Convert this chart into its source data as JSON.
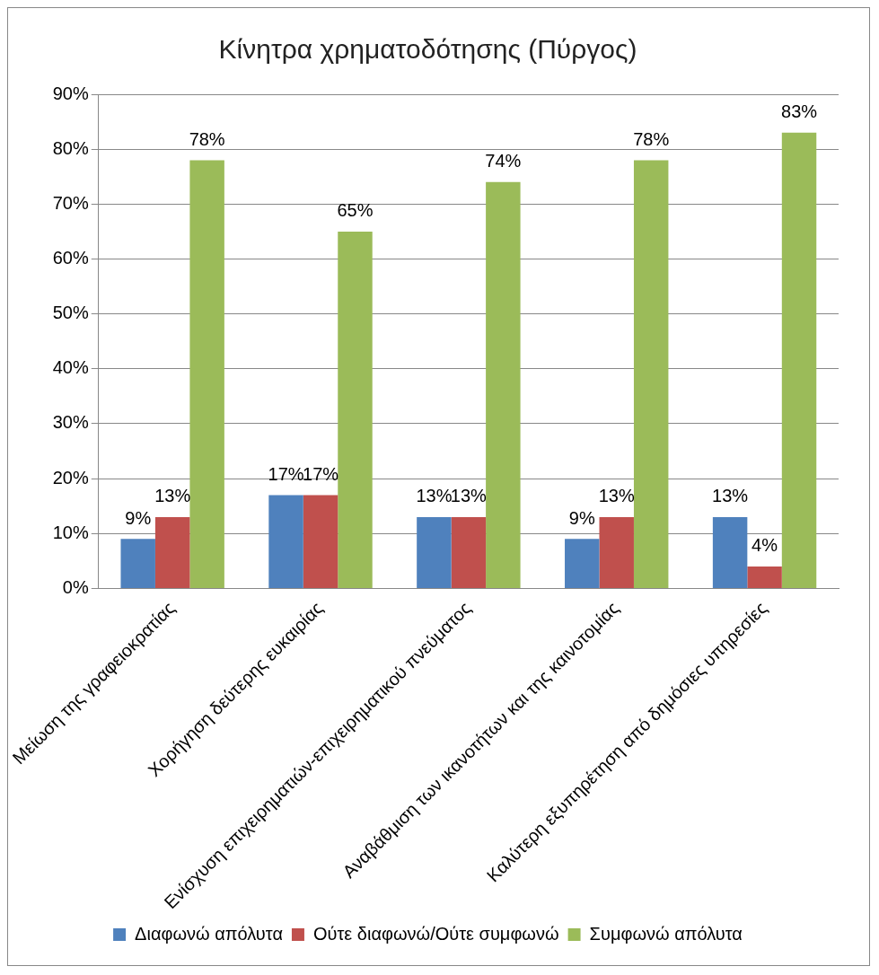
{
  "chart_data": {
    "type": "bar",
    "title": "Κίνητρα χρηματοδότησης (Πύργος)",
    "categories": [
      "Μείωση της γραφειοκρατίας",
      "Χορήγηση δεύτερης ευκαιρίας",
      "Ενίσχυση επιχειρηματιών-επιχειρηματικού πνεύματος",
      "Αναβάθμιση των ικανοτήτων και της καινοτομίας",
      "Καλύτερη εξυπηρέτηση από δημόσιες υπηρεσίες"
    ],
    "series": [
      {
        "name": "Διαφωνώ απόλυτα",
        "color": "#4f81bd",
        "values": [
          9,
          17,
          13,
          9,
          13
        ],
        "value_labels": [
          "9%",
          "17%",
          "13%",
          "9%",
          "13%"
        ]
      },
      {
        "name": "Ούτε διαφωνώ/Ούτε συμφωνώ",
        "color": "#c0504d",
        "values": [
          13,
          17,
          13,
          13,
          4
        ],
        "value_labels": [
          "13%",
          "17%",
          "13%",
          "13%",
          "4%"
        ]
      },
      {
        "name": "Συμφωνώ απόλυτα",
        "color": "#9bbb59",
        "values": [
          78,
          65,
          74,
          78,
          83
        ],
        "value_labels": [
          "78%",
          "65%",
          "74%",
          "78%",
          "83%"
        ]
      }
    ],
    "ylim": [
      0,
      90
    ],
    "yticks": [
      {
        "value": 0,
        "label": "0%"
      },
      {
        "value": 10,
        "label": "10%"
      },
      {
        "value": 20,
        "label": "20%"
      },
      {
        "value": 30,
        "label": "30%"
      },
      {
        "value": 40,
        "label": "40%"
      },
      {
        "value": 50,
        "label": "50%"
      },
      {
        "value": 60,
        "label": "60%"
      },
      {
        "value": 70,
        "label": "70%"
      },
      {
        "value": 80,
        "label": "80%"
      },
      {
        "value": 90,
        "label": "90%"
      }
    ],
    "grid": "y",
    "legend": "bottom"
  }
}
